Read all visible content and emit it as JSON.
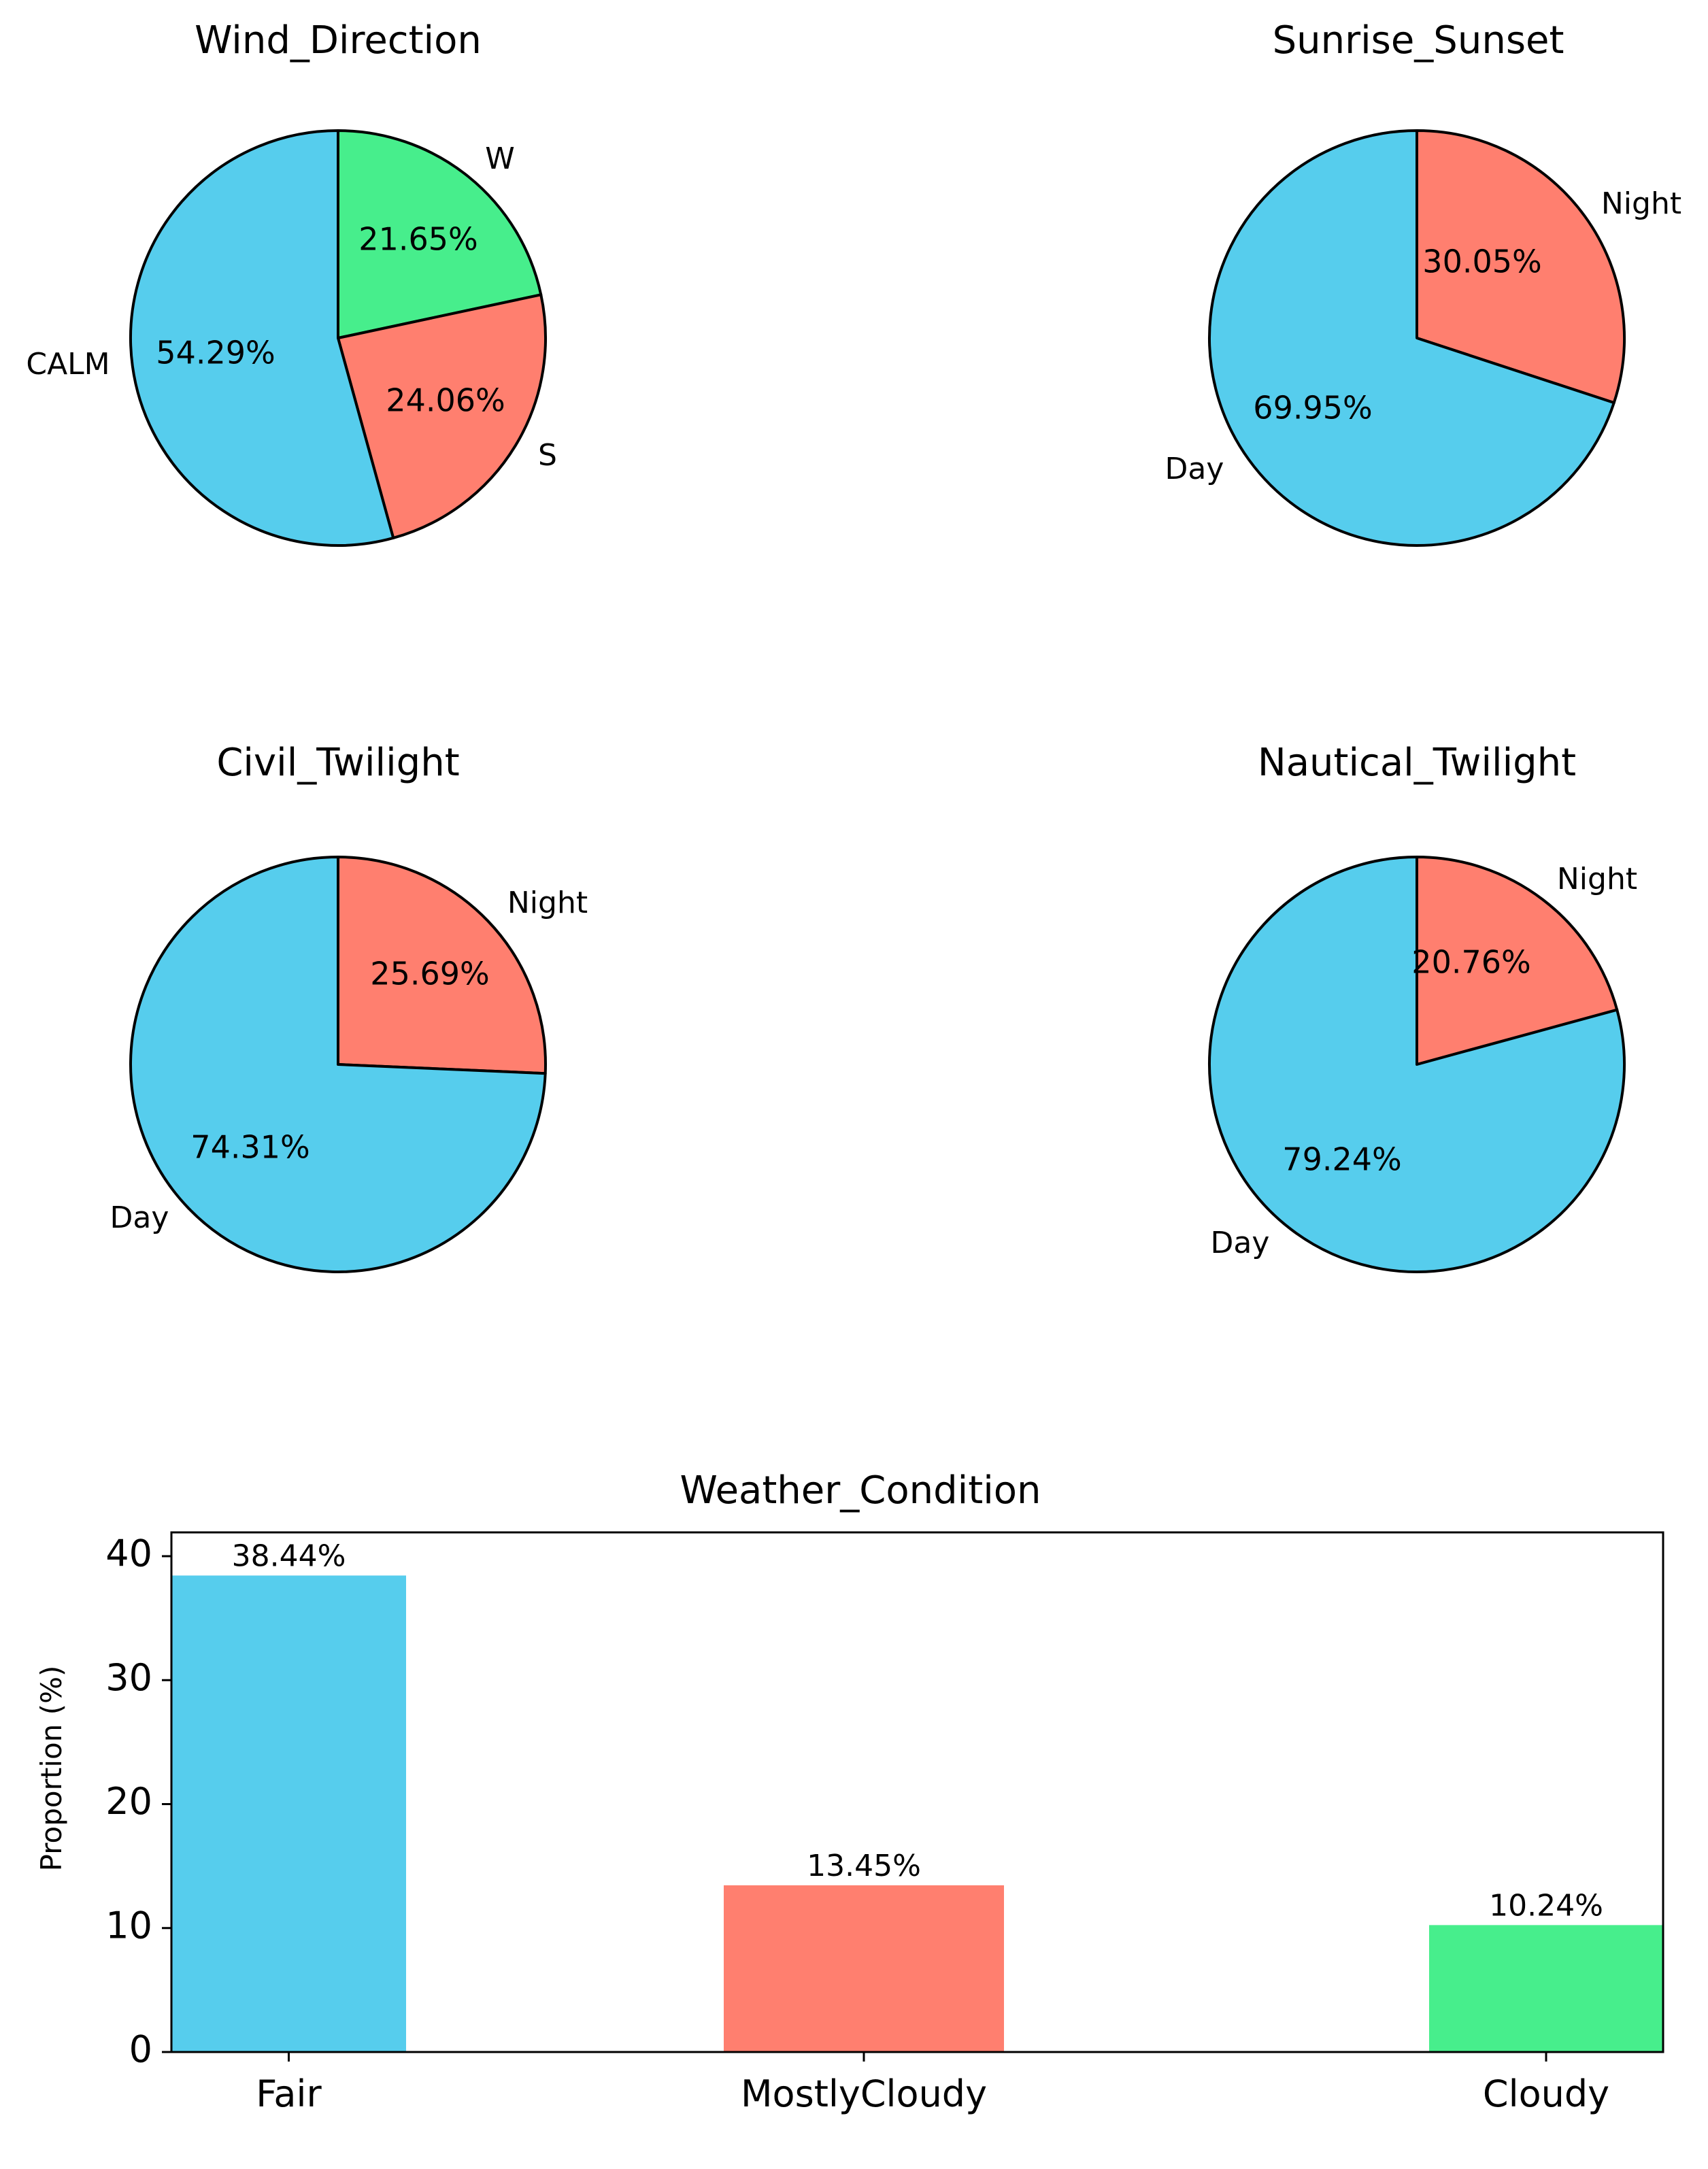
{
  "colors": {
    "blue": "#56CDED",
    "red": "#FF7F6F",
    "green": "#47EE8C",
    "edge": "#000000"
  },
  "chart_data": [
    {
      "type": "pie",
      "title": "Wind_Direction",
      "slices": [
        {
          "label": "W",
          "value": 21.65,
          "pct_label": "21.65%",
          "color": "#47EE8C"
        },
        {
          "label": "S",
          "value": 24.06,
          "pct_label": "24.06%",
          "color": "#FF7F6F"
        },
        {
          "label": "CALM",
          "value": 54.29,
          "pct_label": "54.29%",
          "color": "#56CDED"
        }
      ]
    },
    {
      "type": "pie",
      "title": "Sunrise_Sunset",
      "slices": [
        {
          "label": "Night",
          "value": 30.05,
          "pct_label": "30.05%",
          "color": "#FF7F6F"
        },
        {
          "label": "Day",
          "value": 69.95,
          "pct_label": "69.95%",
          "color": "#56CDED"
        }
      ]
    },
    {
      "type": "pie",
      "title": "Civil_Twilight",
      "slices": [
        {
          "label": "Night",
          "value": 25.69,
          "pct_label": "25.69%",
          "color": "#FF7F6F"
        },
        {
          "label": "Day",
          "value": 74.31,
          "pct_label": "74.31%",
          "color": "#56CDED"
        }
      ]
    },
    {
      "type": "pie",
      "title": "Nautical_Twilight",
      "slices": [
        {
          "label": "Night",
          "value": 20.76,
          "pct_label": "20.76%",
          "color": "#FF7F6F"
        },
        {
          "label": "Day",
          "value": 79.24,
          "pct_label": "79.24%",
          "color": "#56CDED"
        }
      ]
    },
    {
      "type": "bar",
      "title": "Weather_Condition",
      "xlabel": "",
      "ylabel": "Proportion (%)",
      "ylim": [
        0,
        40
      ],
      "yticks": [
        "0",
        "10",
        "20",
        "30",
        "40"
      ],
      "categories": [
        "Fair",
        "MostlyCloudy",
        "Cloudy"
      ],
      "values": [
        38.44,
        13.45,
        10.24
      ],
      "value_labels": [
        "38.44%",
        "13.45%",
        "10.24%"
      ],
      "colors": [
        "#56CDED",
        "#FF7F6F",
        "#47EE8C"
      ]
    }
  ]
}
